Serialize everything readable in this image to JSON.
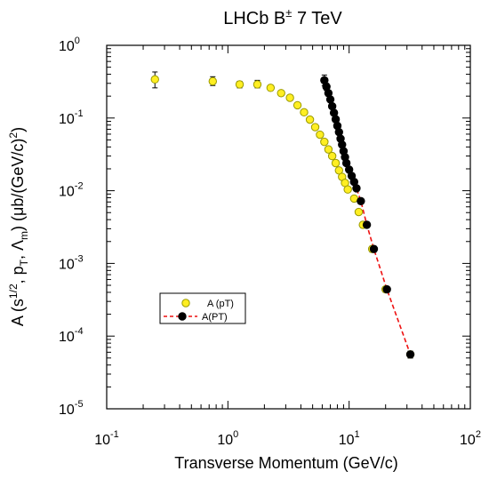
{
  "chart_data": {
    "type": "scatter",
    "title": "LHCb B",
    "title_superscript": "±",
    "title_suffix": " 7 TeV",
    "xlabel": "Transverse Momentum (GeV/c)",
    "ylabel": {
      "p1": "A (s",
      "sup1": "1/2",
      "p2": ", p",
      "sub1": "T",
      "p3": ", Λ",
      "sub2": "m",
      "p4": ") (μb/(GeV/c)",
      "sup2": "2",
      "p5": ")"
    },
    "x_scale": "log",
    "y_scale": "log",
    "xlim": [
      0.1,
      100
    ],
    "ylim": [
      1e-05,
      1
    ],
    "x_ticks": [
      {
        "value": 0.1,
        "base": "10",
        "exp": "-1"
      },
      {
        "value": 1,
        "base": "10",
        "exp": "0"
      },
      {
        "value": 10,
        "base": "10",
        "exp": "1"
      },
      {
        "value": 100,
        "base": "10",
        "exp": "2"
      }
    ],
    "y_ticks": [
      {
        "value": 1,
        "base": "10",
        "exp": "0"
      },
      {
        "value": 0.1,
        "base": "10",
        "exp": "-1"
      },
      {
        "value": 0.01,
        "base": "10",
        "exp": "-2"
      },
      {
        "value": 0.001,
        "base": "10",
        "exp": "-3"
      },
      {
        "value": 0.0001,
        "base": "10",
        "exp": "-4"
      },
      {
        "value": 1e-05,
        "base": "10",
        "exp": "-5"
      }
    ],
    "grid": false,
    "legend_position": "lower-left",
    "series": [
      {
        "name": "A (pT)",
        "marker_color": "#ffee22",
        "marker_edge": "#9a9a00",
        "line": "none",
        "points": [
          {
            "x": 0.25,
            "y": 0.34,
            "ylo": 0.26,
            "yhi": 0.43
          },
          {
            "x": 0.75,
            "y": 0.32,
            "ylo": 0.28,
            "yhi": 0.37
          },
          {
            "x": 1.25,
            "y": 0.29,
            "ylo": 0.26,
            "yhi": 0.32
          },
          {
            "x": 1.75,
            "y": 0.29,
            "ylo": 0.26,
            "yhi": 0.33
          },
          {
            "x": 2.25,
            "y": 0.26,
            "ylo": 0.24,
            "yhi": 0.28
          },
          {
            "x": 2.75,
            "y": 0.22,
            "ylo": 0.205,
            "yhi": 0.235
          },
          {
            "x": 3.25,
            "y": 0.19,
            "ylo": 0.178,
            "yhi": 0.2
          },
          {
            "x": 3.75,
            "y": 0.15,
            "ylo": 0.142,
            "yhi": 0.158
          },
          {
            "x": 4.25,
            "y": 0.12,
            "ylo": 0.113,
            "yhi": 0.127
          },
          {
            "x": 4.75,
            "y": 0.095,
            "ylo": 0.089,
            "yhi": 0.101
          },
          {
            "x": 5.25,
            "y": 0.075,
            "ylo": 0.07,
            "yhi": 0.08
          },
          {
            "x": 5.75,
            "y": 0.059,
            "ylo": 0.055,
            "yhi": 0.063
          },
          {
            "x": 6.25,
            "y": 0.047,
            "ylo": 0.044,
            "yhi": 0.05
          },
          {
            "x": 6.75,
            "y": 0.037,
            "ylo": 0.035,
            "yhi": 0.04
          },
          {
            "x": 7.25,
            "y": 0.03,
            "ylo": 0.028,
            "yhi": 0.032
          },
          {
            "x": 7.75,
            "y": 0.024,
            "ylo": 0.0225,
            "yhi": 0.0255
          },
          {
            "x": 8.25,
            "y": 0.019,
            "ylo": 0.0178,
            "yhi": 0.0202
          },
          {
            "x": 8.75,
            "y": 0.0155,
            "ylo": 0.0145,
            "yhi": 0.0165
          },
          {
            "x": 9.25,
            "y": 0.0128,
            "ylo": 0.012,
            "yhi": 0.0136
          },
          {
            "x": 9.75,
            "y": 0.0104,
            "ylo": 0.0097,
            "yhi": 0.0111
          },
          {
            "x": 11.0,
            "y": 0.0078,
            "ylo": 0.0072,
            "yhi": 0.0084
          },
          {
            "x": 12.0,
            "y": 0.0051,
            "ylo": 0.0047,
            "yhi": 0.0055
          },
          {
            "x": 13.0,
            "y": 0.0034,
            "ylo": 0.0031,
            "yhi": 0.0037
          },
          {
            "x": 15.5,
            "y": 0.00158,
            "ylo": 0.00143,
            "yhi": 0.00173
          },
          {
            "x": 20.0,
            "y": 0.00044,
            "ylo": 0.0004,
            "yhi": 0.00048
          },
          {
            "x": 32.0,
            "y": 5.6e-05,
            "ylo": 5e-05,
            "yhi": 6.2e-05
          }
        ]
      },
      {
        "name": "A(PT)",
        "marker_color": "#000000",
        "marker_edge": "#000000",
        "line": "dashed",
        "line_color": "#ee1111",
        "points": [
          {
            "x": 6.25,
            "y": 0.33,
            "ylo": 0.28,
            "yhi": 0.39
          },
          {
            "x": 6.5,
            "y": 0.27,
            "ylo": 0.24,
            "yhi": 0.3
          },
          {
            "x": 6.75,
            "y": 0.22,
            "ylo": 0.2,
            "yhi": 0.24
          },
          {
            "x": 7.0,
            "y": 0.18,
            "ylo": 0.17,
            "yhi": 0.19
          },
          {
            "x": 7.25,
            "y": 0.145,
            "ylo": 0.137,
            "yhi": 0.153
          },
          {
            "x": 7.5,
            "y": 0.118,
            "ylo": 0.112,
            "yhi": 0.124
          },
          {
            "x": 7.75,
            "y": 0.096,
            "ylo": 0.091,
            "yhi": 0.101
          },
          {
            "x": 8.0,
            "y": 0.078,
            "ylo": 0.074,
            "yhi": 0.082
          },
          {
            "x": 8.25,
            "y": 0.064,
            "ylo": 0.061,
            "yhi": 0.067
          },
          {
            "x": 8.5,
            "y": 0.052,
            "ylo": 0.049,
            "yhi": 0.055
          },
          {
            "x": 8.75,
            "y": 0.043,
            "ylo": 0.041,
            "yhi": 0.045
          },
          {
            "x": 9.0,
            "y": 0.035,
            "ylo": 0.033,
            "yhi": 0.037
          },
          {
            "x": 9.25,
            "y": 0.029,
            "ylo": 0.0275,
            "yhi": 0.0305
          },
          {
            "x": 9.5,
            "y": 0.024,
            "ylo": 0.0228,
            "yhi": 0.0252
          },
          {
            "x": 10.0,
            "y": 0.0195,
            "ylo": 0.0185,
            "yhi": 0.0205
          },
          {
            "x": 10.5,
            "y": 0.016,
            "ylo": 0.0152,
            "yhi": 0.0168
          },
          {
            "x": 11.0,
            "y": 0.0132,
            "ylo": 0.0125,
            "yhi": 0.0139
          },
          {
            "x": 11.5,
            "y": 0.0108,
            "ylo": 0.0102,
            "yhi": 0.0114
          },
          {
            "x": 12.5,
            "y": 0.0072,
            "ylo": 0.0067,
            "yhi": 0.0077
          },
          {
            "x": 14.0,
            "y": 0.0034,
            "ylo": 0.0031,
            "yhi": 0.0037
          },
          {
            "x": 16.0,
            "y": 0.00158,
            "ylo": 0.00143,
            "yhi": 0.00173
          },
          {
            "x": 20.5,
            "y": 0.00044,
            "ylo": 0.0004,
            "yhi": 0.00048
          },
          {
            "x": 32.0,
            "y": 5.6e-05,
            "ylo": 5e-05,
            "yhi": 6.2e-05
          }
        ]
      }
    ]
  }
}
